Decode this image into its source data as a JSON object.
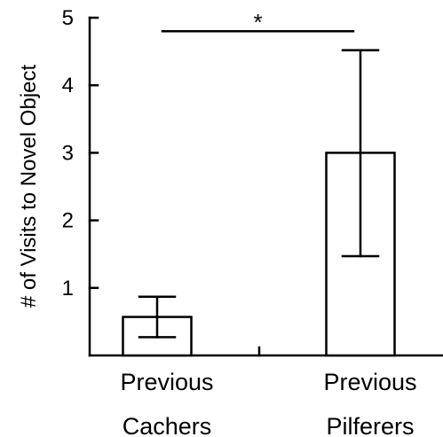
{
  "chart_data": {
    "type": "bar",
    "title": "",
    "xlabel": "",
    "ylabel": "# of Visits to Novel Object",
    "ylim": [
      0,
      5
    ],
    "yticks": [
      1,
      2,
      3,
      4,
      5
    ],
    "grid": false,
    "categories": [
      {
        "line1": "Previous",
        "line2": "Cachers"
      },
      {
        "line1": "Previous",
        "line2": "Pilferers"
      }
    ],
    "values": [
      0.57,
      3.0
    ],
    "error_low": [
      0.27,
      1.47
    ],
    "error_high": [
      0.87,
      4.52
    ],
    "significance": {
      "between": [
        0,
        1
      ],
      "label": "*",
      "y": 4.8
    }
  }
}
